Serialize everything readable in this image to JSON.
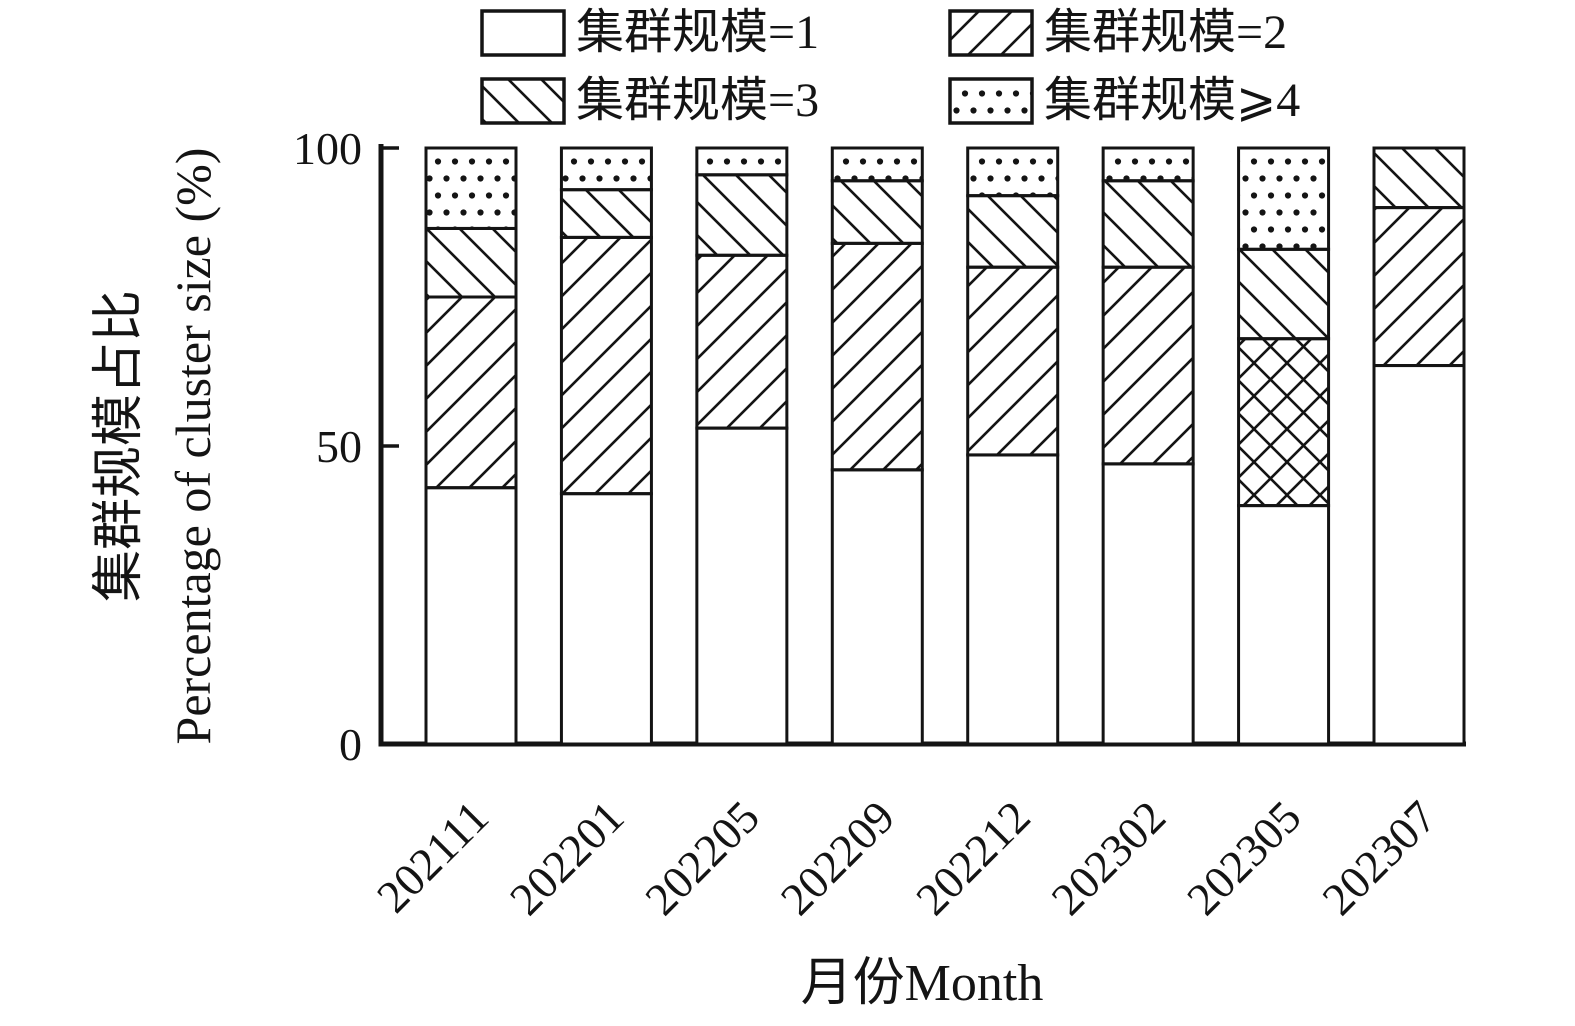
{
  "chart_data": {
    "type": "bar",
    "stacked": true,
    "percent": true,
    "title": "",
    "xlabel": "月份Month",
    "ylabel_cn": "集群规模占比",
    "ylabel_en": "Percentage of cluster size (%)",
    "ylim": [
      0,
      100
    ],
    "yticks": [
      "0",
      "50",
      "100"
    ],
    "grid": false,
    "legend_position": "top",
    "legend_columns": 2,
    "categories": [
      "202111",
      "202201",
      "202205",
      "202209",
      "202212",
      "202302",
      "202305",
      "202307"
    ],
    "series": [
      {
        "name": "集群规模=1",
        "pattern": "none",
        "values": [
          43,
          42,
          53,
          46,
          48.5,
          47,
          40,
          63.5
        ]
      },
      {
        "name": "集群规模=2",
        "pattern": "slash",
        "values": [
          32,
          43,
          29,
          38,
          31.5,
          33,
          28,
          26.5
        ]
      },
      {
        "name": "集群规模=3",
        "pattern": "backslash",
        "values": [
          11.5,
          8,
          13.5,
          10.5,
          12,
          14.5,
          15,
          10
        ]
      },
      {
        "name": "集群规模⩾4",
        "pattern": "dots",
        "values": [
          13.5,
          7,
          4.5,
          5.5,
          8,
          5.5,
          17,
          0
        ]
      }
    ],
    "pattern_overrides": [
      {
        "category": "202305",
        "series": "集群规模=2",
        "pattern": "crosshatch"
      }
    ],
    "colors": {
      "foreground": "#141414",
      "background": "#ffffff"
    }
  }
}
